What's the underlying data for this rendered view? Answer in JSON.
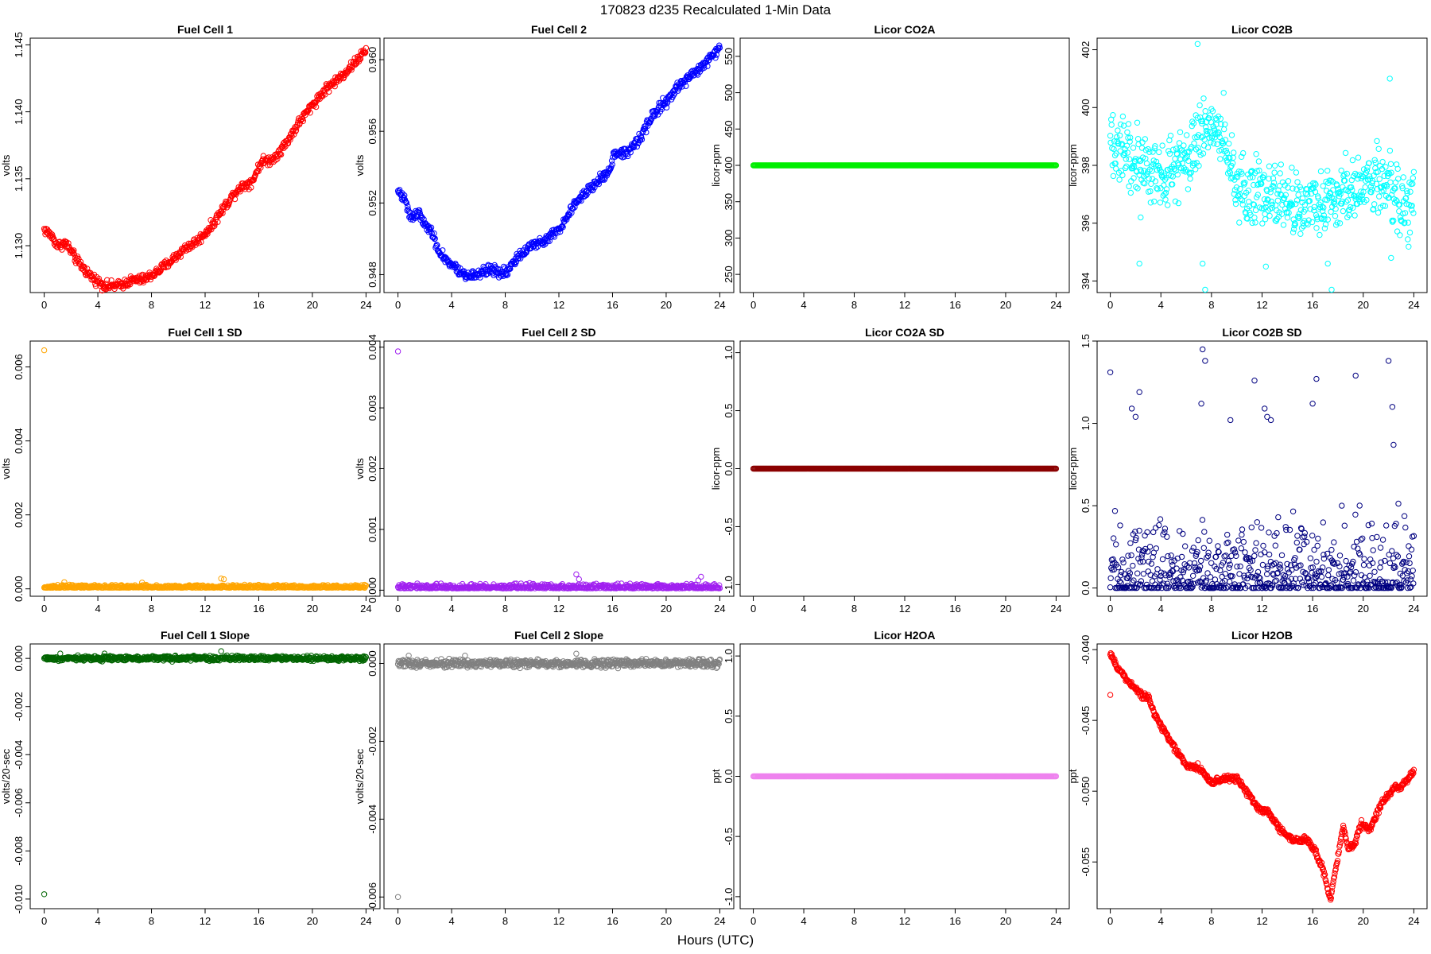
{
  "title": "170823   d235   Recalculated 1-Min Data",
  "xlabel": "Hours (UTC)",
  "chart_data": [
    {
      "type": "scatter",
      "title": "Fuel Cell 1",
      "ylabel": "volts",
      "color": "#ff0000",
      "xlim": [
        0,
        24
      ],
      "ylim": [
        1.1265,
        1.1455
      ],
      "xticks": [
        "0",
        "4",
        "8",
        "12",
        "16",
        "20",
        "24"
      ],
      "yticks": [
        "1.130",
        "1.135",
        "1.140",
        "1.145"
      ],
      "anchors": [
        [
          0,
          1.1312
        ],
        [
          0.5,
          1.1308
        ],
        [
          1,
          1.13
        ],
        [
          1.6,
          1.1302
        ],
        [
          2.5,
          1.1288
        ],
        [
          3.5,
          1.1277
        ],
        [
          4.5,
          1.127
        ],
        [
          5.5,
          1.127
        ],
        [
          6.5,
          1.1274
        ],
        [
          7.5,
          1.1275
        ],
        [
          8.5,
          1.1281
        ],
        [
          9.5,
          1.1289
        ],
        [
          10.5,
          1.1298
        ],
        [
          11.5,
          1.1304
        ],
        [
          12.5,
          1.1315
        ],
        [
          13.5,
          1.133
        ],
        [
          14.5,
          1.1343
        ],
        [
          15.5,
          1.1348
        ],
        [
          16.2,
          1.1363
        ],
        [
          17,
          1.1364
        ],
        [
          18,
          1.1376
        ],
        [
          19,
          1.1392
        ],
        [
          20,
          1.1405
        ],
        [
          21,
          1.1417
        ],
        [
          22,
          1.1425
        ],
        [
          23,
          1.1435
        ],
        [
          24,
          1.1446
        ]
      ],
      "noise": 0.00025,
      "n": 600,
      "outliers": []
    },
    {
      "type": "scatter",
      "title": "Fuel Cell 2",
      "ylabel": "volts",
      "color": "#0000ff",
      "xlim": [
        0,
        24
      ],
      "ylim": [
        0.947,
        0.9612
      ],
      "xticks": [
        "0",
        "4",
        "8",
        "12",
        "16",
        "20",
        "24"
      ],
      "yticks": [
        "0.948",
        "0.952",
        "0.956",
        "0.960"
      ],
      "anchors": [
        [
          0,
          0.9527
        ],
        [
          0.5,
          0.9522
        ],
        [
          1,
          0.9512
        ],
        [
          1.5,
          0.9515
        ],
        [
          2,
          0.9508
        ],
        [
          2.5,
          0.9505
        ],
        [
          3,
          0.9493
        ],
        [
          4,
          0.9485
        ],
        [
          5,
          0.9479
        ],
        [
          6,
          0.9481
        ],
        [
          7,
          0.9483
        ],
        [
          8,
          0.9481
        ],
        [
          9,
          0.949
        ],
        [
          10,
          0.9496
        ],
        [
          11,
          0.95
        ],
        [
          12,
          0.9505
        ],
        [
          13,
          0.9518
        ],
        [
          14,
          0.9526
        ],
        [
          15,
          0.9533
        ],
        [
          15.9,
          0.9539
        ],
        [
          16.1,
          0.9548
        ],
        [
          17,
          0.9548
        ],
        [
          18,
          0.9556
        ],
        [
          19,
          0.9569
        ],
        [
          20,
          0.9577
        ],
        [
          21,
          0.9586
        ],
        [
          22,
          0.9592
        ],
        [
          23,
          0.9598
        ],
        [
          24,
          0.9607
        ]
      ],
      "noise": 0.0002,
      "n": 600,
      "outliers": []
    },
    {
      "type": "scatter",
      "title": "Licor CO2A",
      "ylabel": "licor-ppm",
      "color": "#00ee00",
      "xlim": [
        0,
        24
      ],
      "ylim": [
        225,
        575
      ],
      "xticks": [
        "0",
        "4",
        "8",
        "12",
        "16",
        "20",
        "24"
      ],
      "yticks": [
        "250",
        "300",
        "350",
        "400",
        "450",
        "500",
        "550"
      ],
      "anchors": [
        [
          0,
          400
        ],
        [
          24,
          400
        ]
      ],
      "noise": 0,
      "n": 400,
      "outliers": []
    },
    {
      "type": "scatter",
      "title": "Licor CO2B",
      "ylabel": "licor-ppm",
      "color": "#00ffff",
      "xlim": [
        0,
        24
      ],
      "ylim": [
        393.6,
        402.4
      ],
      "xticks": [
        "0",
        "4",
        "8",
        "12",
        "16",
        "20",
        "24"
      ],
      "yticks": [
        "394",
        "396",
        "398",
        "400",
        "402"
      ],
      "anchors": [
        [
          0,
          398.6
        ],
        [
          2,
          398.2
        ],
        [
          4,
          397.6
        ],
        [
          6,
          398.3
        ],
        [
          7,
          399.0
        ],
        [
          8,
          399.6
        ],
        [
          9,
          399.0
        ],
        [
          10,
          397.2
        ],
        [
          12,
          397.0
        ],
        [
          14,
          396.9
        ],
        [
          16,
          396.6
        ],
        [
          18,
          397.0
        ],
        [
          20,
          397.5
        ],
        [
          22,
          397.3
        ],
        [
          23,
          396.5
        ],
        [
          24,
          396.5
        ]
      ],
      "noise": 0.8,
      "n": 700,
      "outliers": [
        [
          2.3,
          394.6
        ],
        [
          2.4,
          396.2
        ],
        [
          7.3,
          394.6
        ],
        [
          7.5,
          393.7
        ],
        [
          12.3,
          394.5
        ],
        [
          17.2,
          394.6
        ],
        [
          17.5,
          393.7
        ],
        [
          22.2,
          394.8
        ],
        [
          22.1,
          401.0
        ],
        [
          6.9,
          402.2
        ]
      ]
    },
    {
      "type": "scatter",
      "title": "Fuel Cell 1 SD",
      "ylabel": "volts",
      "color": "#ffa500",
      "xlim": [
        0,
        24
      ],
      "ylim": [
        -0.0002,
        0.0067
      ],
      "xticks": [
        "0",
        "4",
        "8",
        "12",
        "16",
        "20",
        "24"
      ],
      "yticks": [
        "0.000",
        "0.002",
        "0.004",
        "0.006"
      ],
      "anchors": [
        [
          0,
          5e-05
        ],
        [
          24,
          4e-05
        ]
      ],
      "noise": 3e-05,
      "n": 600,
      "outliers": [
        [
          0,
          0.00645
        ],
        [
          13.2,
          0.00028
        ],
        [
          13.4,
          0.00026
        ],
        [
          1.5,
          0.00018
        ],
        [
          7.3,
          0.00017
        ]
      ]
    },
    {
      "type": "scatter",
      "title": "Fuel Cell 2 SD",
      "ylabel": "volts",
      "color": "#a020f0",
      "xlim": [
        0,
        24
      ],
      "ylim": [
        -0.0001,
        0.0041
      ],
      "xticks": [
        "0",
        "4",
        "8",
        "12",
        "16",
        "20",
        "24"
      ],
      "yticks": [
        "0.000",
        "0.001",
        "0.002",
        "0.003",
        "0.004"
      ],
      "anchors": [
        [
          0,
          5e-05
        ],
        [
          24,
          4e-05
        ]
      ],
      "noise": 3e-05,
      "n": 600,
      "outliers": [
        [
          0,
          0.00393
        ],
        [
          13.3,
          0.00026
        ],
        [
          13.5,
          0.00018
        ],
        [
          22.6,
          0.00022
        ],
        [
          22.4,
          0.00016
        ]
      ]
    },
    {
      "type": "scatter",
      "title": "Licor CO2A SD",
      "ylabel": "licor-ppm",
      "color": "#8b0000",
      "xlim": [
        0,
        24
      ],
      "ylim": [
        -1.1,
        1.1
      ],
      "xticks": [
        "0",
        "4",
        "8",
        "12",
        "16",
        "20",
        "24"
      ],
      "yticks": [
        "-1.0",
        "-0.5",
        "0.0",
        "0.5",
        "1.0"
      ],
      "anchors": [
        [
          0,
          0
        ],
        [
          24,
          0
        ]
      ],
      "noise": 0,
      "n": 400,
      "outliers": []
    },
    {
      "type": "scatter",
      "title": "Licor CO2B SD",
      "ylabel": "licor-ppm",
      "color": "#000080",
      "xlim": [
        0,
        24
      ],
      "ylim": [
        -0.05,
        1.5
      ],
      "xticks": [
        "0",
        "4",
        "8",
        "12",
        "16",
        "20",
        "24"
      ],
      "yticks": [
        "0.0",
        "0.5",
        "1.0",
        "1.5"
      ],
      "anchors": [
        [
          0,
          0.2
        ],
        [
          24,
          0.2
        ]
      ],
      "noise": 0.18,
      "n": 650,
      "outliers": [
        [
          0,
          1.31
        ],
        [
          1.7,
          1.09
        ],
        [
          2,
          1.04
        ],
        [
          2.3,
          1.19
        ],
        [
          7.3,
          1.45
        ],
        [
          7.5,
          1.38
        ],
        [
          7.2,
          1.12
        ],
        [
          11.4,
          1.26
        ],
        [
          12.2,
          1.09
        ],
        [
          12.4,
          1.04
        ],
        [
          16,
          1.12
        ],
        [
          16.3,
          1.27
        ],
        [
          19.4,
          1.29
        ],
        [
          22,
          1.38
        ],
        [
          22.3,
          1.1
        ],
        [
          22.4,
          0.87
        ],
        [
          12.7,
          1.02
        ],
        [
          9.5,
          1.02
        ]
      ]
    },
    {
      "type": "scatter",
      "title": "Fuel Cell 1 Slope",
      "ylabel": "volts/20-sec",
      "color": "#006400",
      "xlim": [
        0,
        24
      ],
      "ylim": [
        -0.0104,
        0.0006
      ],
      "xticks": [
        "0",
        "4",
        "8",
        "12",
        "16",
        "20",
        "24"
      ],
      "yticks": [
        "-0.010",
        "-0.008",
        "-0.006",
        "-0.004",
        "-0.002",
        "0.000"
      ],
      "anchors": [
        [
          0,
          0.0
        ],
        [
          24,
          0.0
        ]
      ],
      "noise": 7e-05,
      "n": 700,
      "outliers": [
        [
          0,
          -0.0098
        ],
        [
          13.2,
          0.0003
        ],
        [
          1.2,
          0.0002
        ],
        [
          4.5,
          0.0002
        ]
      ]
    },
    {
      "type": "scatter",
      "title": "Fuel Cell 2 Slope",
      "ylabel": "volts/20-sec",
      "color": "#808080",
      "xlim": [
        0,
        24
      ],
      "ylim": [
        -0.0063,
        0.0005
      ],
      "xticks": [
        "0",
        "4",
        "8",
        "12",
        "16",
        "20",
        "24"
      ],
      "yticks": [
        "-0.006",
        "-0.004",
        "-0.002",
        "0.000"
      ],
      "anchors": [
        [
          0,
          0.0
        ],
        [
          24,
          0.0
        ]
      ],
      "noise": 7e-05,
      "n": 700,
      "outliers": [
        [
          0,
          -0.006
        ],
        [
          13.3,
          0.00025
        ],
        [
          0.8,
          0.0002
        ],
        [
          5,
          0.0002
        ]
      ]
    },
    {
      "type": "scatter",
      "title": "Licor H2OA",
      "ylabel": "ppt",
      "color": "#ee82ee",
      "xlim": [
        0,
        24
      ],
      "ylim": [
        -1.1,
        1.1
      ],
      "xticks": [
        "0",
        "4",
        "8",
        "12",
        "16",
        "20",
        "24"
      ],
      "yticks": [
        "-1.0",
        "-0.5",
        "0.0",
        "0.5",
        "1.0"
      ],
      "anchors": [
        [
          0,
          0
        ],
        [
          24,
          0
        ]
      ],
      "noise": 0,
      "n": 400,
      "outliers": []
    },
    {
      "type": "scatter",
      "title": "Licor H2OB",
      "ylabel": "ppt",
      "color": "#ff0000",
      "xlim": [
        0,
        24
      ],
      "ylim": [
        -0.0583,
        -0.0396
      ],
      "xticks": [
        "0",
        "4",
        "8",
        "12",
        "16",
        "20",
        "24"
      ],
      "yticks": [
        "-0.055",
        "-0.050",
        "-0.045",
        "-0.040"
      ],
      "anchors": [
        [
          0,
          -0.0402
        ],
        [
          0.5,
          -0.0412
        ],
        [
          1.5,
          -0.0423
        ],
        [
          2.5,
          -0.0432
        ],
        [
          3,
          -0.0434
        ],
        [
          3.5,
          -0.0446
        ],
        [
          4.5,
          -0.0461
        ],
        [
          5.5,
          -0.0475
        ],
        [
          6,
          -0.0482
        ],
        [
          7,
          -0.0483
        ],
        [
          8,
          -0.0494
        ],
        [
          9,
          -0.0491
        ],
        [
          10,
          -0.0491
        ],
        [
          11,
          -0.0503
        ],
        [
          11.8,
          -0.0513
        ],
        [
          12.5,
          -0.0515
        ],
        [
          13.5,
          -0.0528
        ],
        [
          14.5,
          -0.0535
        ],
        [
          15.5,
          -0.0534
        ],
        [
          16.2,
          -0.0542
        ],
        [
          16.8,
          -0.0555
        ],
        [
          17.4,
          -0.0577
        ],
        [
          18,
          -0.0546
        ],
        [
          18.4,
          -0.0525
        ],
        [
          18.8,
          -0.054
        ],
        [
          19.3,
          -0.0538
        ],
        [
          19.8,
          -0.0523
        ],
        [
          20.5,
          -0.0527
        ],
        [
          21.5,
          -0.0508
        ],
        [
          22.5,
          -0.0497
        ],
        [
          23,
          -0.0497
        ],
        [
          24,
          -0.0486
        ]
      ],
      "noise": 0.00015,
      "n": 650,
      "outliers": [
        [
          0,
          -0.0432
        ]
      ]
    }
  ]
}
